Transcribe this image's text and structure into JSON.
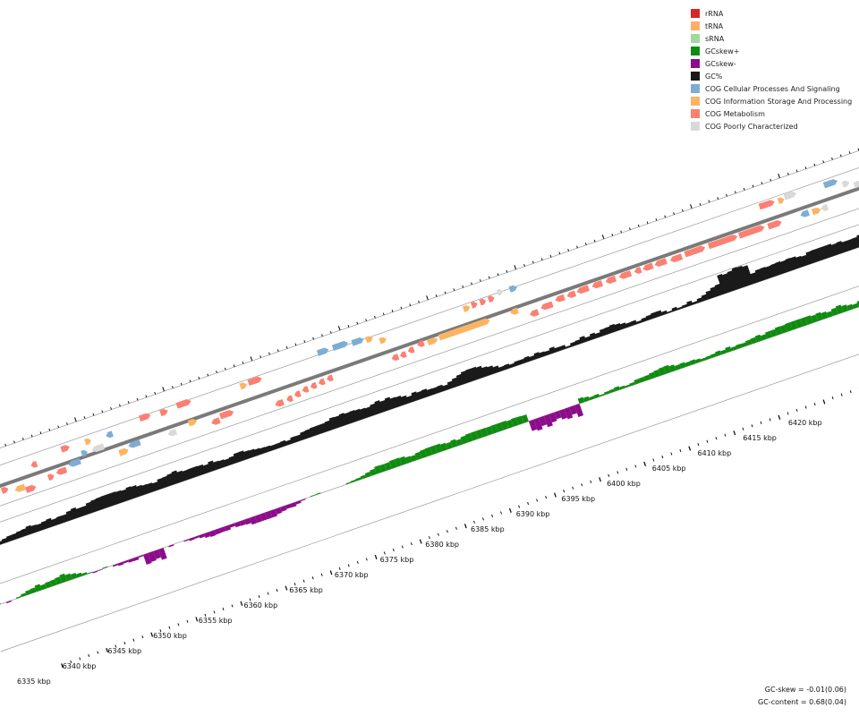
{
  "legend": [
    {
      "label": "rRNA",
      "color": "#d62728"
    },
    {
      "label": "tRNA",
      "color": "#fdae6b"
    },
    {
      "label": "sRNA",
      "color": "#a1d99b"
    },
    {
      "label": "GCskew+",
      "color": "#0f8c0f"
    },
    {
      "label": "GCskew-",
      "color": "#8c0c8c"
    },
    {
      "label": "GC%",
      "color": "#1a1a1a"
    },
    {
      "label": "COG Cellular Processes And Signaling",
      "color": "#7eadd4"
    },
    {
      "label": "COG Information Storage And Processing",
      "color": "#fdb462"
    },
    {
      "label": "COG Metabolism",
      "color": "#fb8072"
    },
    {
      "label": "COG Poorly Characterized",
      "color": "#d9d9d9"
    }
  ],
  "scale": {
    "labels": [
      "6335 kbp",
      "6340 kbp",
      "6345 kbp",
      "6350 kbp",
      "6355 kbp",
      "6360 kbp",
      "6365 kbp",
      "6370 kbp",
      "6375 kbp",
      "6380 kbp",
      "6385 kbp",
      "6390 kbp",
      "6395 kbp",
      "6400 kbp",
      "6405 kbp",
      "6410 kbp",
      "6415 kbp",
      "6420 kbp"
    ]
  },
  "stats": {
    "gc_skew": "GC-skew = -0.01(0.06)",
    "gc_content": "GC-content = 0.68(0.04)"
  }
}
